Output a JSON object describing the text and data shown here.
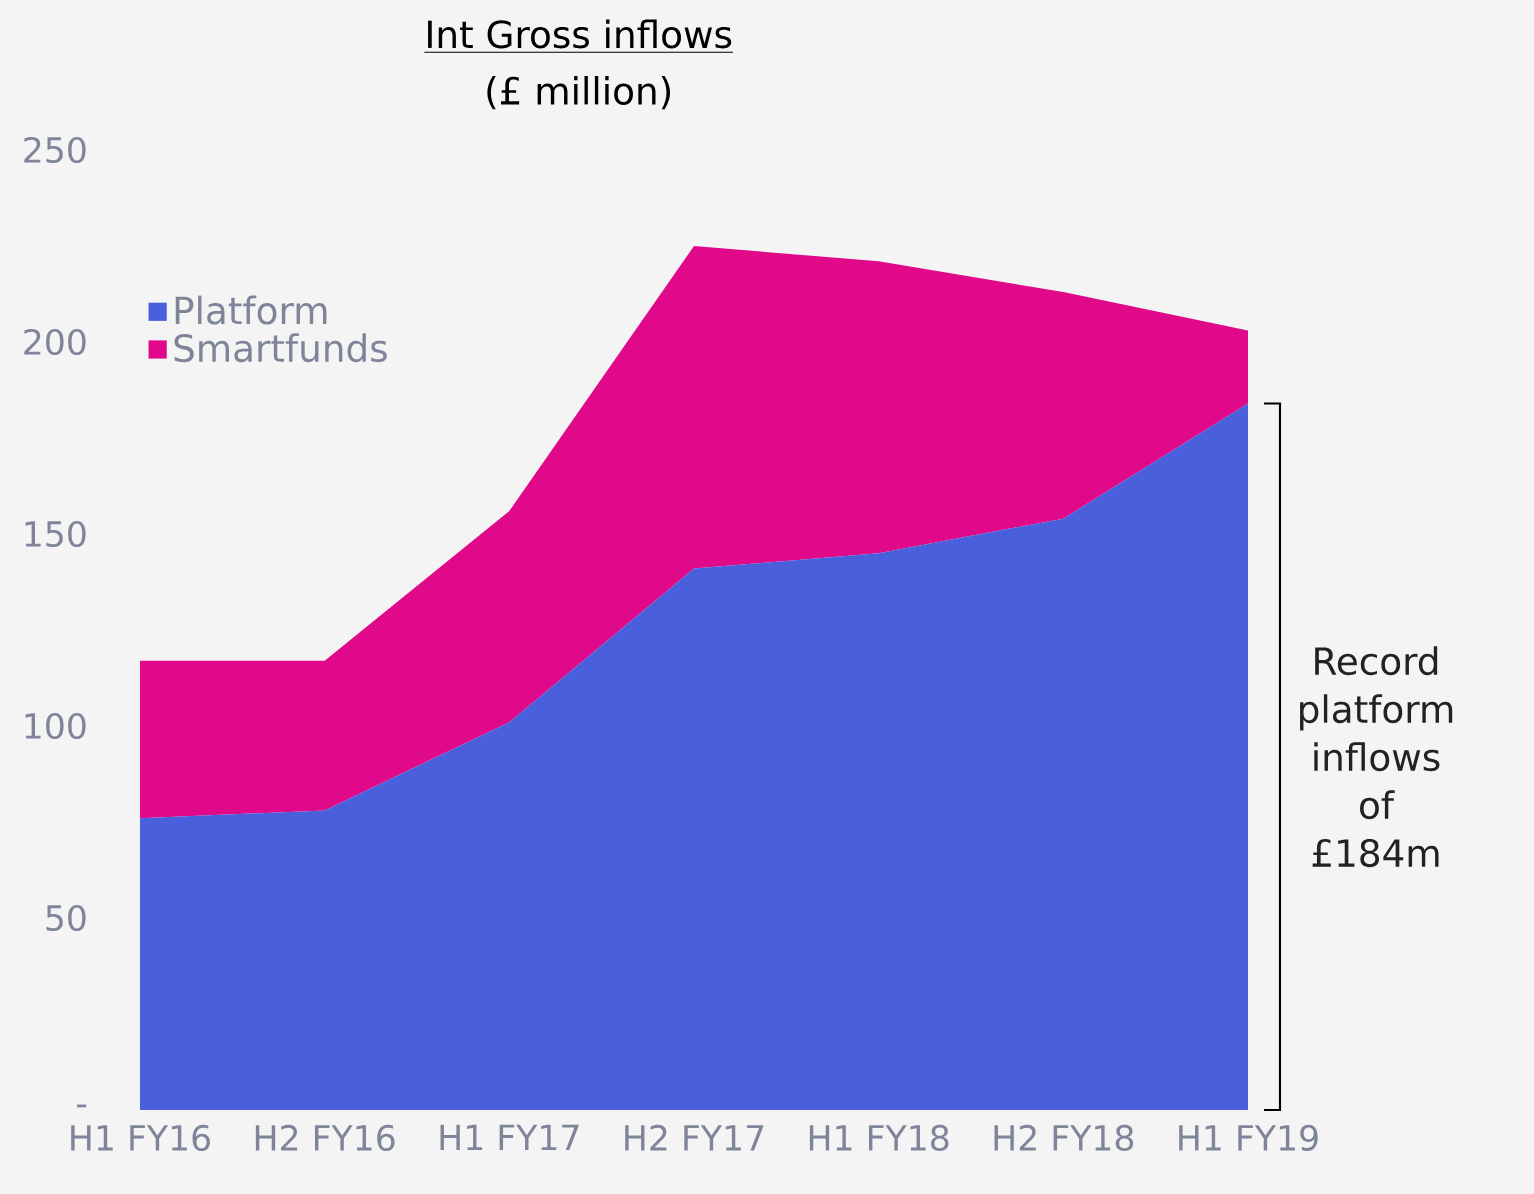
{
  "chart_data": {
    "type": "area",
    "stacked": true,
    "title": "Int Gross inflows",
    "subtitle": "(£ million)",
    "categories": [
      "H1 FY16",
      "H2 FY16",
      "H1 FY17",
      "H2 FY17",
      "H1 FY18",
      "H2 FY18",
      "H1 FY19"
    ],
    "series": [
      {
        "name": "Platform",
        "color": "#4a5fdc",
        "values": [
          76,
          78,
          101,
          141,
          145,
          154,
          184
        ]
      },
      {
        "name": "Smartfunds",
        "color": "#e0098a",
        "values": [
          41,
          39,
          55,
          84,
          76,
          59,
          19
        ]
      }
    ],
    "ylim": [
      0,
      250
    ],
    "yticks": [
      {
        "value": 0,
        "label": "-"
      },
      50,
      100,
      150,
      200,
      250
    ],
    "legend": "left",
    "grid": false,
    "annotations": [
      "Record platform inflows of £184m"
    ]
  }
}
